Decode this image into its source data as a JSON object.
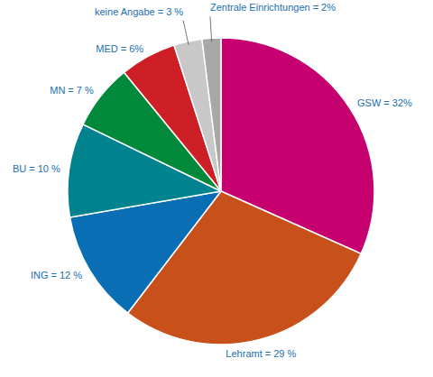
{
  "chart_data": {
    "type": "pie",
    "categories": [
      "GSW",
      "Lehramt",
      "ING",
      "BU",
      "MN",
      "MED",
      "keine Angabe",
      "Zentrale Einrichtungen"
    ],
    "values": [
      32,
      29,
      12,
      10,
      7,
      6,
      3,
      2
    ],
    "value_labels": [
      "= 32%",
      "= 29 %",
      "= 12 %",
      "= 10 %",
      "= 7 %",
      "= 6%",
      "= 3 %",
      "= 2%"
    ],
    "colors": [
      "#c6006f",
      "#c8501a",
      "#0a6eb4",
      "#00838f",
      "#00893a",
      "#cf1f26",
      "#c8c8c8",
      "#a8a8a8"
    ],
    "data_labels": true
  }
}
